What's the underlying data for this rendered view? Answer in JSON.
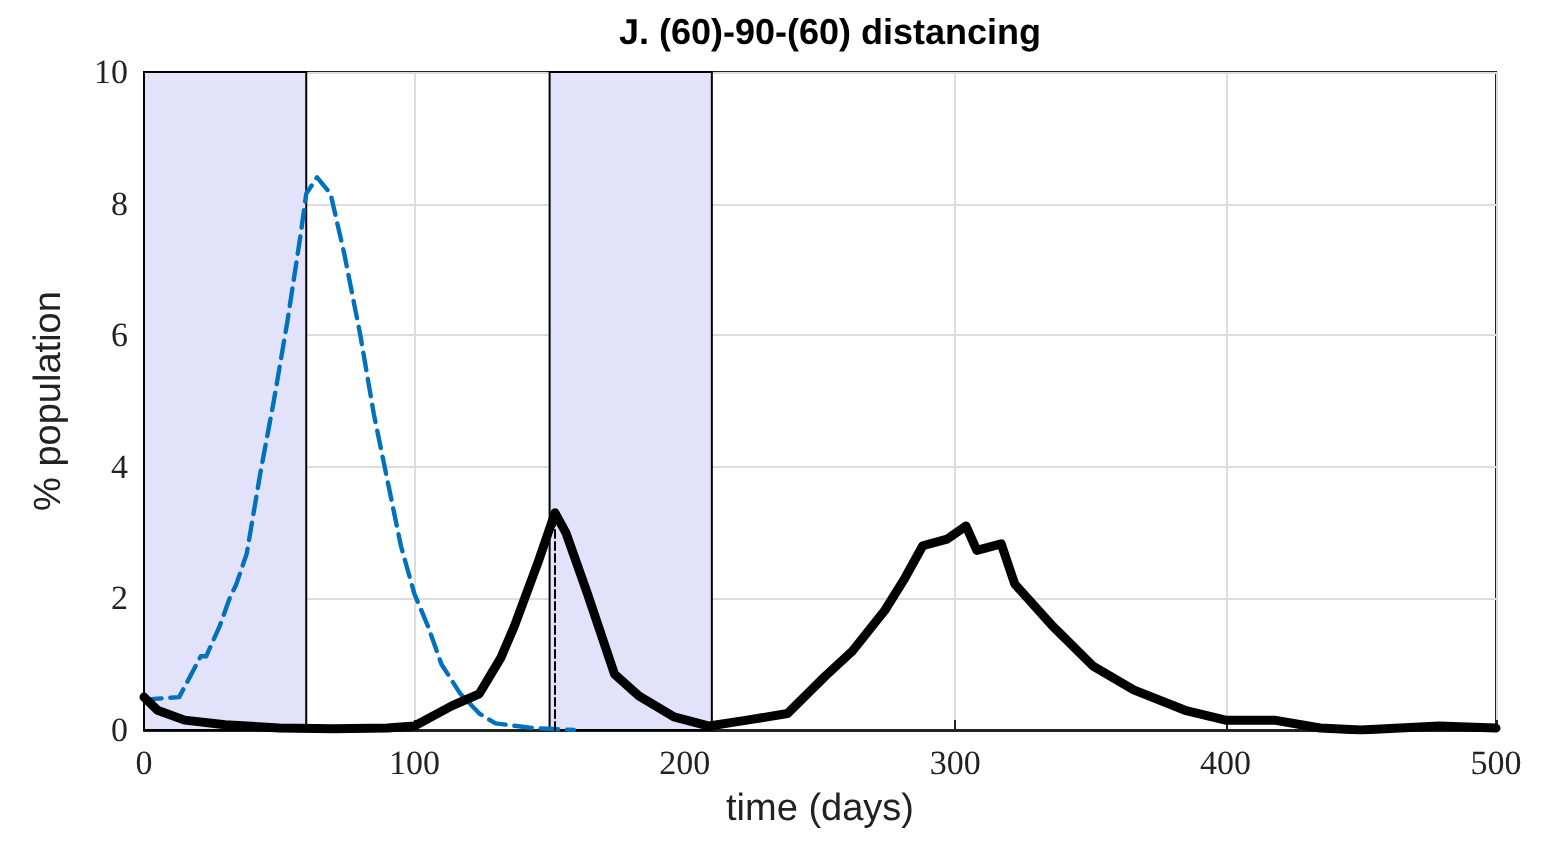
{
  "chart_data": {
    "type": "line",
    "title": "J. (60)-90-(60) distancing",
    "xlabel": "time (days)",
    "ylabel": "% population",
    "xlim": [
      0,
      500
    ],
    "xticks": [
      0,
      100,
      200,
      300,
      400,
      500
    ],
    "ylim": [
      0,
      10
    ],
    "yticks": [
      0,
      2,
      4,
      6,
      8,
      10
    ],
    "grid": true,
    "marker": "none",
    "bands": [
      {
        "axis": "x",
        "from": 0,
        "to": 60,
        "color": "#e2e2fb"
      },
      {
        "axis": "x",
        "from": 150,
        "to": 210,
        "color": "#e2e2fb"
      }
    ],
    "series": [
      {
        "color": "#0072bd",
        "line_style": "dashed",
        "x": [
          0,
          13,
          21,
          23,
          28,
          32,
          34,
          38,
          43,
          48,
          53,
          58,
          60,
          64,
          69,
          74,
          80,
          85,
          90,
          95,
          100,
          105,
          110,
          117,
          124,
          130,
          144,
          159
        ],
        "values": [
          0.46,
          0.5,
          1.12,
          1.12,
          1.58,
          2.04,
          2.2,
          2.68,
          3.9,
          5.0,
          6.2,
          7.55,
          8.15,
          8.4,
          8.15,
          7.25,
          6.0,
          4.8,
          3.8,
          2.8,
          2.07,
          1.58,
          1.0,
          0.55,
          0.25,
          0.1,
          0.03,
          0
        ]
      },
      {
        "color": "#000000",
        "line_style": "solid",
        "x": [
          0,
          5,
          15,
          30,
          50,
          70,
          90,
          100,
          114,
          124,
          132,
          137,
          146,
          152,
          156,
          164,
          174,
          183,
          196,
          209,
          223,
          238,
          252,
          262,
          274,
          281,
          288,
          297,
          304,
          308,
          317,
          322,
          336,
          351,
          366,
          385,
          400,
          418,
          435,
          450,
          479,
          500
        ],
        "values": [
          0.5,
          0.3,
          0.15,
          0.08,
          0.03,
          0.02,
          0.03,
          0.06,
          0.37,
          0.55,
          1.1,
          1.58,
          2.58,
          3.3,
          3.0,
          2.07,
          0.85,
          0.52,
          0.2,
          0.06,
          0.15,
          0.25,
          0.82,
          1.2,
          1.82,
          2.28,
          2.8,
          2.9,
          3.1,
          2.73,
          2.83,
          2.22,
          1.58,
          0.97,
          0.61,
          0.3,
          0.15,
          0.15,
          0.03,
          0,
          0.06,
          0.03
        ]
      },
      {
        "color": "#000000",
        "line_style": "dashed",
        "x": [
          152,
          152
        ],
        "values": [
          0,
          3.3
        ]
      }
    ]
  }
}
